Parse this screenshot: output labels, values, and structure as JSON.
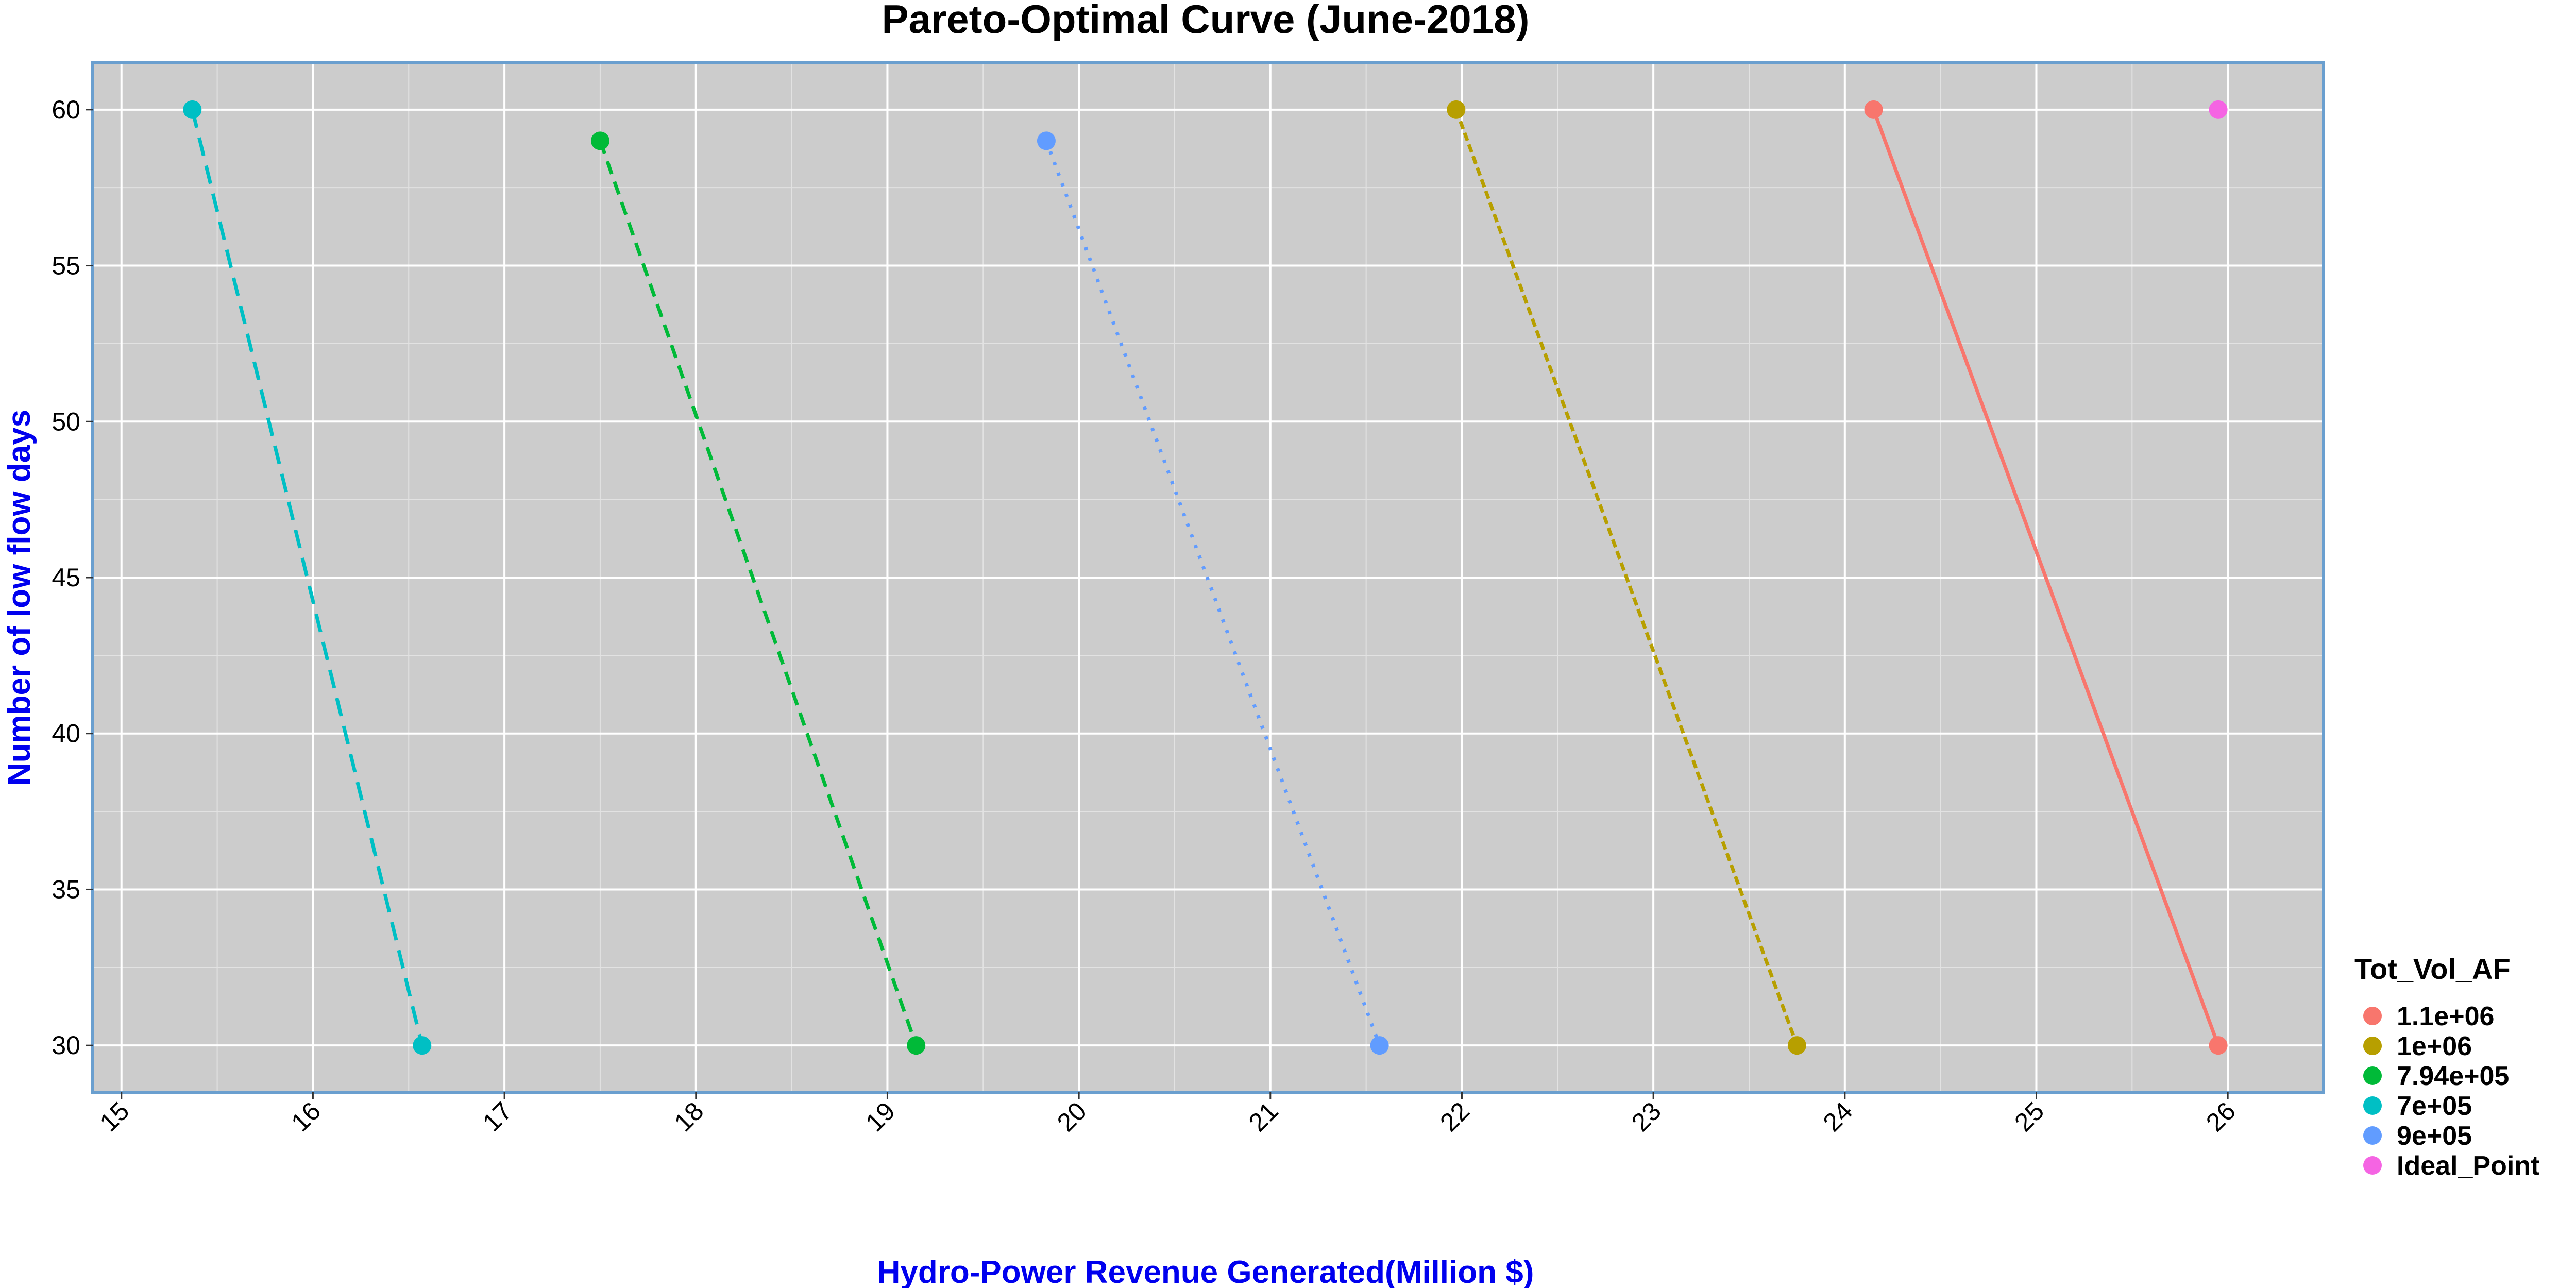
{
  "chart_data": {
    "type": "scatter",
    "title": "Pareto-Optimal Curve (June-2018)",
    "xlabel": "Hydro-Power Revenue Generated(Million $)",
    "ylabel": "Number of low flow days",
    "xlim": [
      14.85,
      26.5
    ],
    "ylim": [
      28.5,
      61.5
    ],
    "x_ticks": [
      15,
      16,
      17,
      18,
      19,
      20,
      21,
      22,
      23,
      24,
      25,
      26
    ],
    "y_ticks": [
      30,
      35,
      40,
      45,
      50,
      55,
      60
    ],
    "grid": true,
    "legend_title": "Tot_Vol_AF",
    "legend_position": "right",
    "label_color": "#0000ee",
    "panel_background": "#cccccc",
    "panel_border": "#6a9fcf",
    "series": [
      {
        "name": "1.1e+06",
        "color": "#f8766d",
        "line_style": "solid",
        "points": [
          {
            "x": 24.15,
            "y": 60
          },
          {
            "x": 25.95,
            "y": 30
          }
        ]
      },
      {
        "name": "1e+06",
        "color": "#b79f00",
        "line_style": "dotted-dash",
        "points": [
          {
            "x": 21.97,
            "y": 60
          },
          {
            "x": 23.75,
            "y": 30
          }
        ]
      },
      {
        "name": "7.94e+05",
        "color": "#00ba38",
        "line_style": "dashed",
        "points": [
          {
            "x": 17.5,
            "y": 59
          },
          {
            "x": 19.15,
            "y": 30
          }
        ]
      },
      {
        "name": "7e+05",
        "color": "#00bfc4",
        "line_style": "long-dash",
        "points": [
          {
            "x": 15.37,
            "y": 60
          },
          {
            "x": 16.57,
            "y": 30
          }
        ]
      },
      {
        "name": "9e+05",
        "color": "#619cff",
        "line_style": "dotted",
        "points": [
          {
            "x": 19.83,
            "y": 59
          },
          {
            "x": 21.57,
            "y": 30
          }
        ]
      },
      {
        "name": "Ideal_Point",
        "color": "#f564e3",
        "line_style": "none",
        "points": [
          {
            "x": 25.95,
            "y": 60
          }
        ]
      }
    ]
  }
}
